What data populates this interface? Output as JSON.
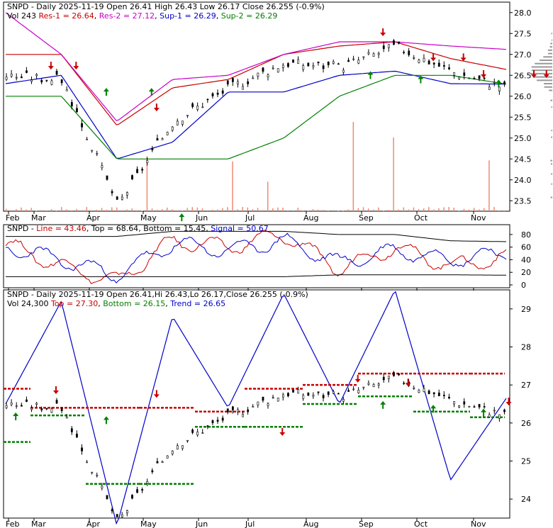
{
  "colors": {
    "res1": "#c80000",
    "res2": "#c800c8",
    "sup1": "#0000c8",
    "sup2": "#008000",
    "line": "#c80000",
    "top": "#008000",
    "bottom": "#c80000",
    "signal": "#0000c8",
    "trend": "#0000c8",
    "up": "#008000",
    "down": "#c80000",
    "vol": "#f28a72"
  },
  "months": [
    "Feb",
    "Mar",
    "Apr",
    "May",
    "Jun",
    "Jul",
    "Aug",
    "Sep",
    "Oct",
    "Nov"
  ],
  "panel1": {
    "header": {
      "symbol": "SNPD",
      "desc": "Daily 2025-11-19",
      "open": "Open 26.41",
      "high": "High 26.43",
      "low": "Low 26.17",
      "close": "Close 26.255 (-0.9%)"
    },
    "legend": {
      "vol": "Vol 243",
      "res1": "Res-1 = 26.64",
      "res2": "Res-2 = 27.12",
      "sup1": "Sup-1 = 26.29",
      "sup2": "Sup-2 = 26.29"
    },
    "yticks": [
      "28.0",
      "27.5",
      "27.0",
      "26.5",
      "26.0",
      "25.5",
      "25.0",
      "24.5",
      "24.0",
      "23.5"
    ]
  },
  "panel2": {
    "header": {
      "symbol": "SNPD",
      "line": "Line = 43.46",
      "top": "Top = 68.64",
      "bottom": "Bottom = 15.45",
      "signal": "Signal = 50.67"
    },
    "yticks": [
      "80",
      "60",
      "40",
      "20",
      "0"
    ]
  },
  "panel3": {
    "header": {
      "symbol": "SNPD",
      "desc": "Daily 2025-11-19 Open 26.41,Hi 26.43,Lo 26.17,Close 26.255 (-0.9%)"
    },
    "legend": {
      "vol": "Vol 24,300",
      "top": "Top = 27.30",
      "bottom": "Bottom = 26.15",
      "trend": "Trend = 26.65"
    },
    "yticks": [
      "29",
      "28",
      "27",
      "26",
      "25",
      "24"
    ]
  },
  "chart_data": [
    {
      "type": "candlestick",
      "title": "SNPD - Daily 2025-11-19",
      "ohlc_last": {
        "open": 26.41,
        "high": 26.43,
        "low": 26.17,
        "close": 26.255,
        "change_pct": -0.9
      },
      "ylim": [
        23.25,
        28.25
      ],
      "x": [
        "Feb",
        "Mar",
        "Apr",
        "May",
        "Jun",
        "Jul",
        "Aug",
        "Sep",
        "Oct",
        "Nov"
      ],
      "close": [
        26.5,
        26.4,
        23.4,
        25.4,
        26.2,
        26.8,
        26.7,
        27.2,
        26.6,
        26.2
      ],
      "series": [
        {
          "name": "Res-1",
          "values": [
            27.0,
            27.0,
            25.3,
            26.2,
            26.4,
            27.0,
            27.2,
            27.3,
            26.9,
            26.64
          ]
        },
        {
          "name": "Res-2",
          "values": [
            28.0,
            27.0,
            25.4,
            26.4,
            26.5,
            27.0,
            27.3,
            27.3,
            27.2,
            27.12
          ]
        },
        {
          "name": "Sup-1",
          "values": [
            26.3,
            26.5,
            24.5,
            24.9,
            26.1,
            26.1,
            26.5,
            26.6,
            26.3,
            26.29
          ]
        },
        {
          "name": "Sup-2",
          "values": [
            26.0,
            26.0,
            24.5,
            24.5,
            24.5,
            25.0,
            26.0,
            26.5,
            26.5,
            26.29
          ]
        }
      ]
    },
    {
      "type": "line",
      "ylim": [
        0,
        90
      ],
      "yticks": [
        0,
        20,
        40,
        60,
        80
      ],
      "x": [
        "Feb",
        "Mar",
        "Apr",
        "May",
        "Jun",
        "Jul",
        "Aug",
        "Sep",
        "Oct",
        "Nov"
      ],
      "series": [
        {
          "name": "Line",
          "values": [
            65,
            30,
            5,
            70,
            60,
            80,
            25,
            60,
            30,
            43.46
          ]
        },
        {
          "name": "Top",
          "values": [
            77,
            77,
            77,
            85,
            85,
            85,
            80,
            80,
            70,
            68.64
          ]
        },
        {
          "name": "Bottom",
          "values": [
            13,
            13,
            13,
            13,
            13,
            13,
            16,
            16,
            16,
            15.45
          ]
        },
        {
          "name": "Signal",
          "values": [
            60,
            40,
            15,
            65,
            55,
            70,
            35,
            55,
            40,
            50.67
          ]
        }
      ]
    },
    {
      "type": "candlestick",
      "title": "SNPD - Daily 2025-11-19",
      "ylim": [
        23.5,
        29.5
      ],
      "x": [
        "Feb",
        "Mar",
        "Apr",
        "May",
        "Jun",
        "Jul",
        "Aug",
        "Sep",
        "Oct",
        "Nov"
      ],
      "series": [
        {
          "name": "Top",
          "values": [
            26.9,
            26.4,
            26.4,
            26.4,
            26.3,
            26.9,
            27.0,
            27.3,
            27.3,
            27.3
          ]
        },
        {
          "name": "Bottom",
          "values": [
            25.5,
            26.2,
            24.4,
            24.4,
            25.9,
            25.9,
            26.5,
            26.7,
            26.3,
            26.15
          ]
        },
        {
          "name": "Trend",
          "values": [
            26.5,
            29.2,
            23.3,
            28.8,
            26.4,
            29.4,
            26.5,
            29.5,
            24.5,
            26.65
          ]
        }
      ]
    }
  ]
}
